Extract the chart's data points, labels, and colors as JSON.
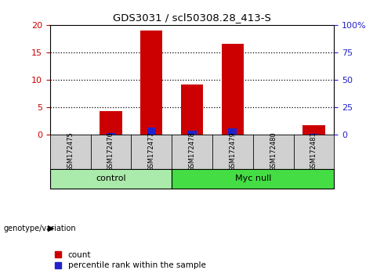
{
  "title": "GDS3031 / scl50308.28_413-S",
  "samples": [
    "GSM172475",
    "GSM172476",
    "GSM172477",
    "GSM172478",
    "GSM172479",
    "GSM172480",
    "GSM172481"
  ],
  "count_values": [
    0,
    4.3,
    19.0,
    9.2,
    16.5,
    0,
    1.7
  ],
  "percentile_values": [
    0,
    1.3,
    6.8,
    3.7,
    5.5,
    0,
    0.8
  ],
  "groups": [
    {
      "label": "control",
      "start": 0,
      "end": 3,
      "color": "#aaeaaa"
    },
    {
      "label": "Myc null",
      "start": 3,
      "end": 7,
      "color": "#44dd44"
    }
  ],
  "ylim_left": [
    0,
    20
  ],
  "ylim_right": [
    0,
    100
  ],
  "yticks_left": [
    0,
    5,
    10,
    15,
    20
  ],
  "ytick_labels_left": [
    "0",
    "5",
    "10",
    "15",
    "20"
  ],
  "yticks_right": [
    0,
    25,
    50,
    75,
    100
  ],
  "ytick_labels_right": [
    "0",
    "25",
    "50",
    "75",
    "100%"
  ],
  "bar_color_red": "#cc0000",
  "bar_color_blue": "#2222cc",
  "bar_width": 0.55,
  "blue_bar_width": 0.22,
  "grid_dotted_ticks": [
    5,
    10,
    15
  ],
  "plot_bg": "white",
  "left_tick_color": "#cc0000",
  "right_tick_color": "#2222cc",
  "legend_count": "count",
  "legend_pct": "percentile rank within the sample",
  "genotype_label": "genotype/variation",
  "sample_box_bg": "#d0d0d0",
  "group_header_bg": "#d0d0d0"
}
